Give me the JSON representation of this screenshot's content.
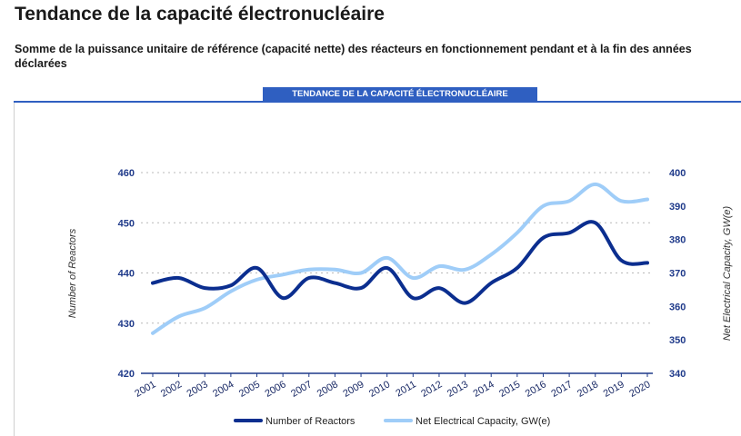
{
  "page": {
    "title": "Tendance de la capacité électronucléaire",
    "subtitle": "Somme de la puissance unitaire de référence (capacité nette) des réacteurs en fonctionnement pendant et à la fin des années déclarées"
  },
  "panel": {
    "tab_label": "TENDANCE DE LA CAPACITÉ ÉLECTRONUCLÉAIRE"
  },
  "colors": {
    "reactors": "#0b2e8f",
    "capacity": "#9fcdf8",
    "accent": "#2f5fc1"
  },
  "chart_data": {
    "type": "line",
    "title": "TENDANCE DE LA CAPACITÉ ÉLECTRONUCLÉAIRE",
    "categories": [
      "2001",
      "2002",
      "2003",
      "2004",
      "2005",
      "2006",
      "2007",
      "2008",
      "2009",
      "2010",
      "2011",
      "2012",
      "2013",
      "2014",
      "2015",
      "2016",
      "2017",
      "2018",
      "2019",
      "2020"
    ],
    "series": [
      {
        "name": "Number of Reactors",
        "axis": "left",
        "values": [
          438,
          439,
          437,
          437.5,
          441,
          435,
          439,
          438,
          437,
          441,
          435,
          437,
          434,
          438,
          441,
          447,
          448,
          450,
          442.5,
          442
        ]
      },
      {
        "name": "Net Electrical Capacity, GW(e)",
        "axis": "right",
        "values": [
          352,
          357,
          359.5,
          364.5,
          368,
          369.5,
          371,
          371,
          370,
          374.5,
          368.5,
          372,
          371,
          375.5,
          382,
          390,
          391.5,
          396.5,
          391.5,
          392
        ]
      }
    ],
    "y_left": {
      "label": "Number of Reactors",
      "ylim": [
        420,
        460
      ],
      "ticks": [
        420,
        430,
        440,
        450,
        460
      ]
    },
    "y_right": {
      "label": "Net Electrical Capacity, GW(e)",
      "ylim": [
        340,
        400
      ],
      "ticks": [
        340,
        350,
        360,
        370,
        380,
        390,
        400
      ]
    },
    "grid": "horizontal-dotted",
    "legend": "bottom-center"
  }
}
